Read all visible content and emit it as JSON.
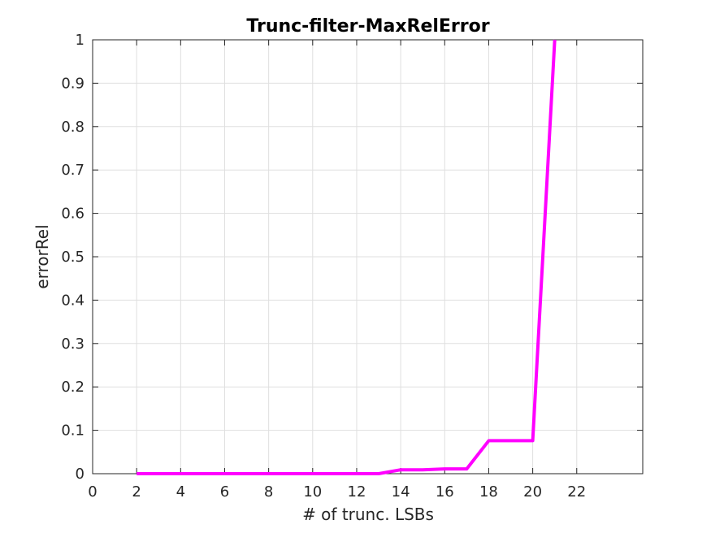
{
  "chart_data": {
    "type": "line",
    "title": "Trunc-filter-MaxRelError",
    "xlabel": "# of trunc. LSBs",
    "ylabel": "errorRel",
    "xlim": [
      0,
      25
    ],
    "ylim": [
      0,
      1
    ],
    "xticks": [
      0,
      2,
      4,
      6,
      8,
      10,
      12,
      14,
      16,
      18,
      20,
      22
    ],
    "yticks": [
      0,
      0.1,
      0.2,
      0.3,
      0.4,
      0.5,
      0.6,
      0.7,
      0.8,
      0.9,
      1
    ],
    "grid": true,
    "series": [
      {
        "color": "#ff00ff",
        "x": [
          2,
          3,
          4,
          5,
          6,
          7,
          8,
          9,
          10,
          11,
          12,
          13,
          14,
          15,
          16,
          17,
          18,
          19,
          20,
          21
        ],
        "y": [
          0,
          0,
          0,
          0,
          0,
          0,
          0,
          0,
          0,
          0,
          0,
          0,
          0.009,
          0.009,
          0.011,
          0.011,
          0.076,
          0.076,
          0.076,
          1.0
        ]
      }
    ]
  }
}
